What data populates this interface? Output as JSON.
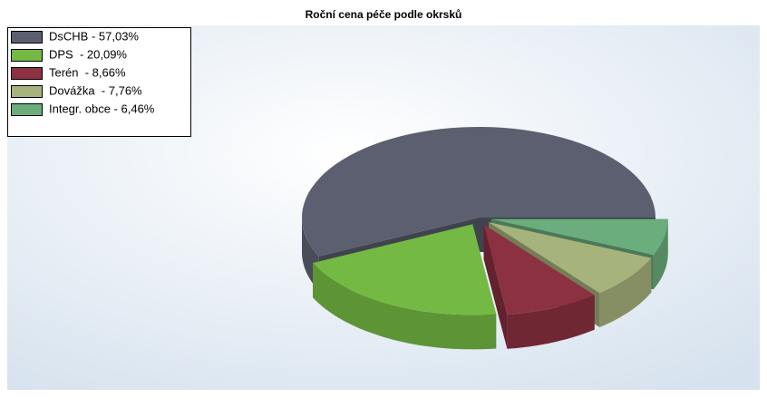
{
  "chart_data": {
    "type": "pie3d",
    "title": "Roční cena péče podle okrsků",
    "categories": [
      "DsCHB - 57,03%",
      "DPS  - 20,09%",
      "Terén  - 8,66%",
      "Dovážka  - 7,76%",
      "Integr. obce - 6,46%"
    ],
    "values": [
      57.03,
      20.09,
      8.66,
      7.76,
      6.46
    ],
    "colors": [
      "#5b5f6f",
      "#74b943",
      "#8c3141",
      "#a7b37c",
      "#6bad7c"
    ],
    "legend": "top-left"
  }
}
